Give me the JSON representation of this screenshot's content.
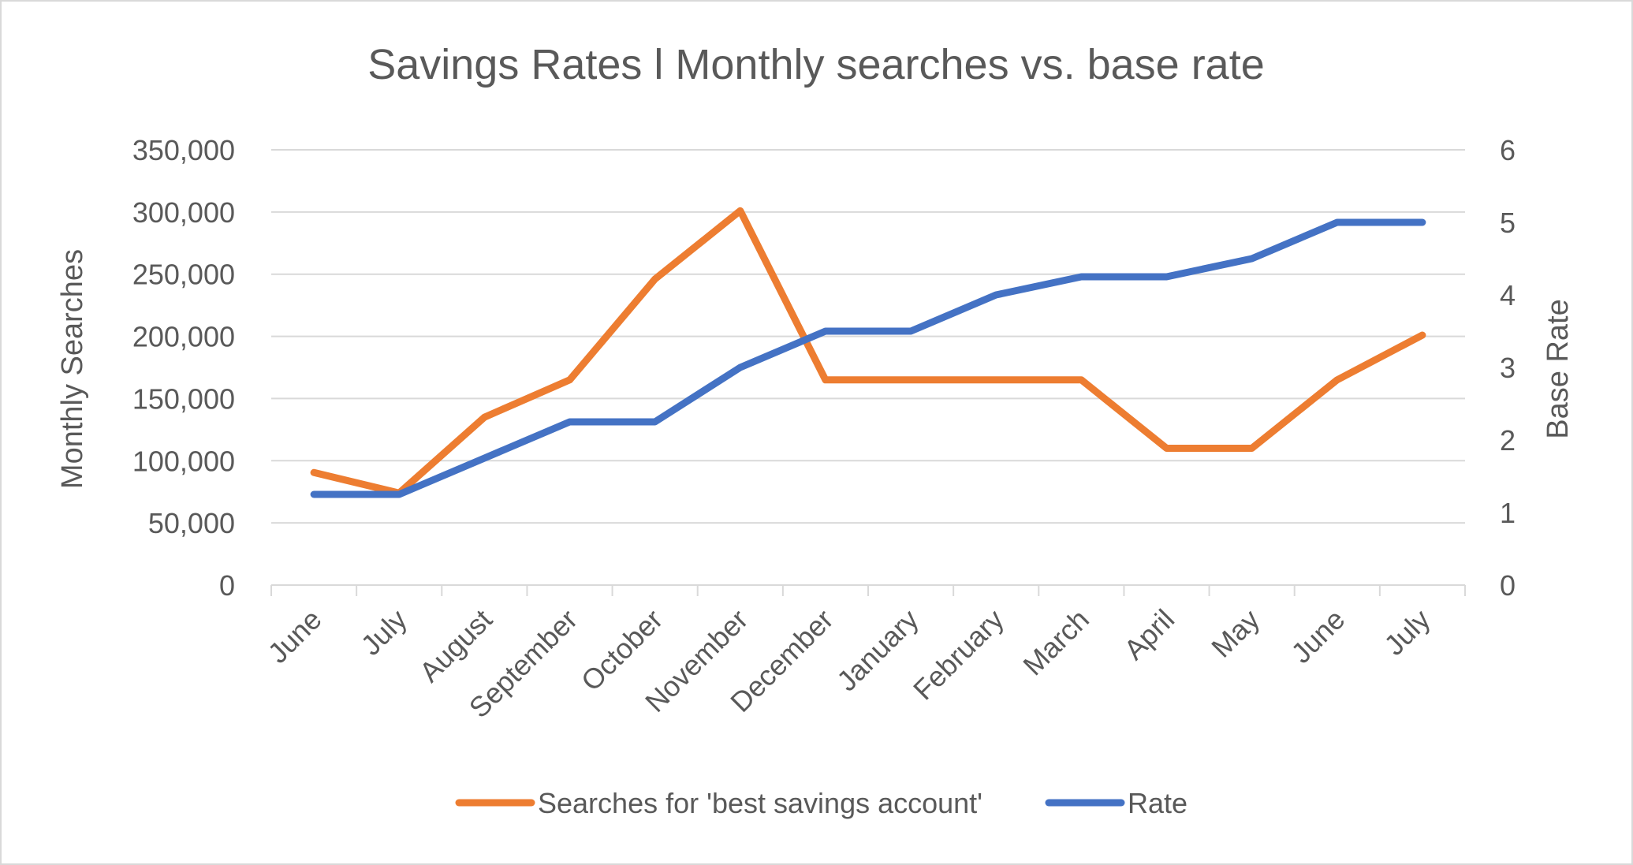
{
  "chart_data": {
    "type": "line",
    "title": "Savings Rates l Monthly searches vs. base rate",
    "xlabel": "",
    "ylabel": "Monthly Searches",
    "y2label": "Base Rate",
    "categories": [
      "June",
      "July",
      "August",
      "September",
      "October",
      "November",
      "December",
      "January",
      "February",
      "March",
      "April",
      "May",
      "June",
      "July"
    ],
    "ylim": [
      0,
      350000
    ],
    "y2lim": [
      0,
      6
    ],
    "yticks": [
      "0",
      "50,000",
      "100,000",
      "150,000",
      "200,000",
      "250,000",
      "300,000",
      "350,000"
    ],
    "y2ticks": [
      "0",
      "1",
      "2",
      "3",
      "4",
      "5",
      "6"
    ],
    "grid": true,
    "legend_position": "bottom",
    "series": [
      {
        "name": "Searches for 'best savings account'",
        "axis": "left",
        "color": "#ED7D31",
        "values": [
          90500,
          74000,
          135000,
          165000,
          246000,
          301000,
          165000,
          165000,
          165000,
          165000,
          110000,
          110000,
          165000,
          201000
        ]
      },
      {
        "name": "Rate",
        "axis": "right",
        "color": "#4472C4",
        "values": [
          1.25,
          1.25,
          1.75,
          2.25,
          2.25,
          3.0,
          3.5,
          3.5,
          4.0,
          4.25,
          4.25,
          4.5,
          5.0,
          5.0
        ]
      }
    ]
  }
}
